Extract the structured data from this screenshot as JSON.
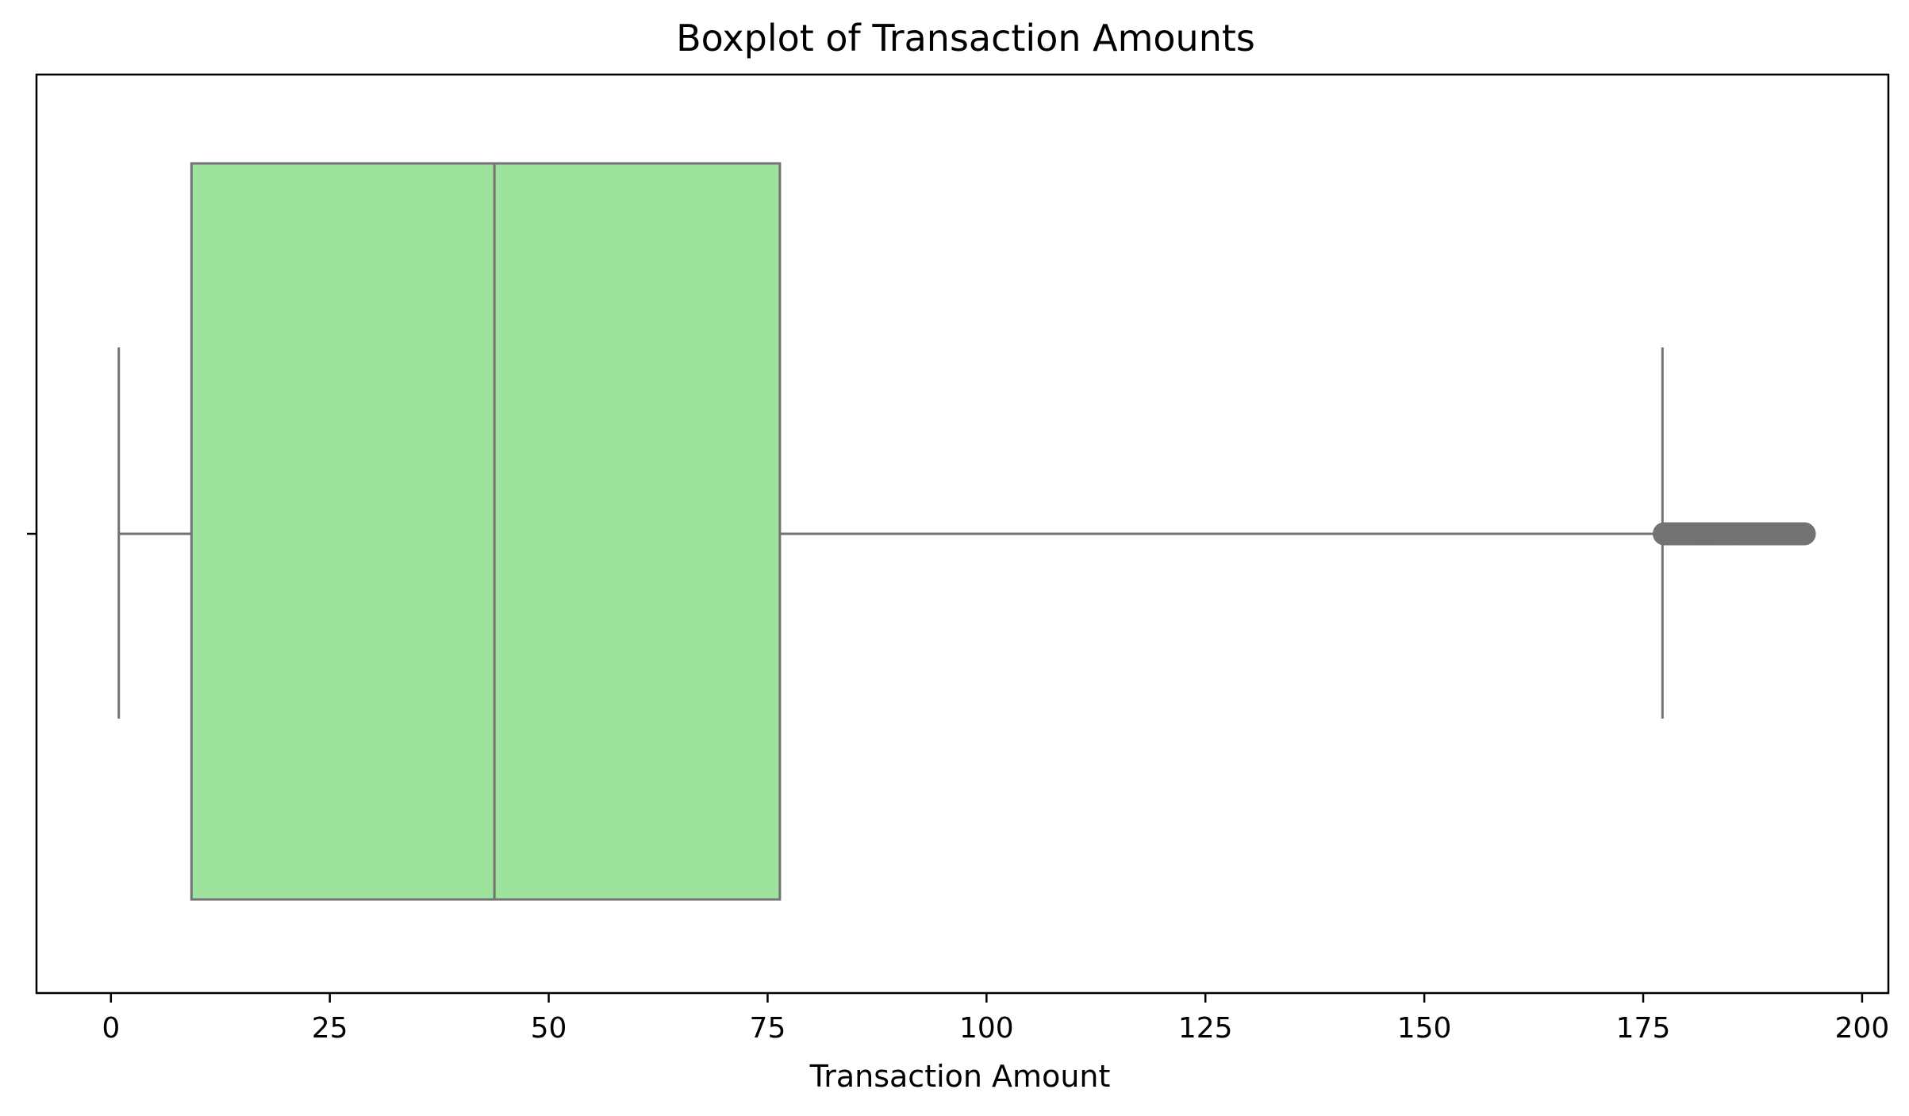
{
  "chart_data": {
    "type": "boxplot",
    "title": "Boxplot of Transaction Amounts",
    "xlabel": "Transaction Amount",
    "ylabel": "",
    "orientation": "horizontal",
    "xlim": [
      -8.5,
      203
    ],
    "xticks": [
      0,
      25,
      50,
      75,
      100,
      125,
      150,
      175,
      200
    ],
    "grid": false,
    "legend": false,
    "box": {
      "whisker_low": 0.9,
      "q1": 9.2,
      "median": 43.8,
      "q3": 76.4,
      "whisker_high": 177.2,
      "outlier_range": [
        177.4,
        193.4
      ]
    },
    "colors": {
      "box_fill": "#9de29d",
      "line": "#737373",
      "frame": "#000000"
    }
  }
}
